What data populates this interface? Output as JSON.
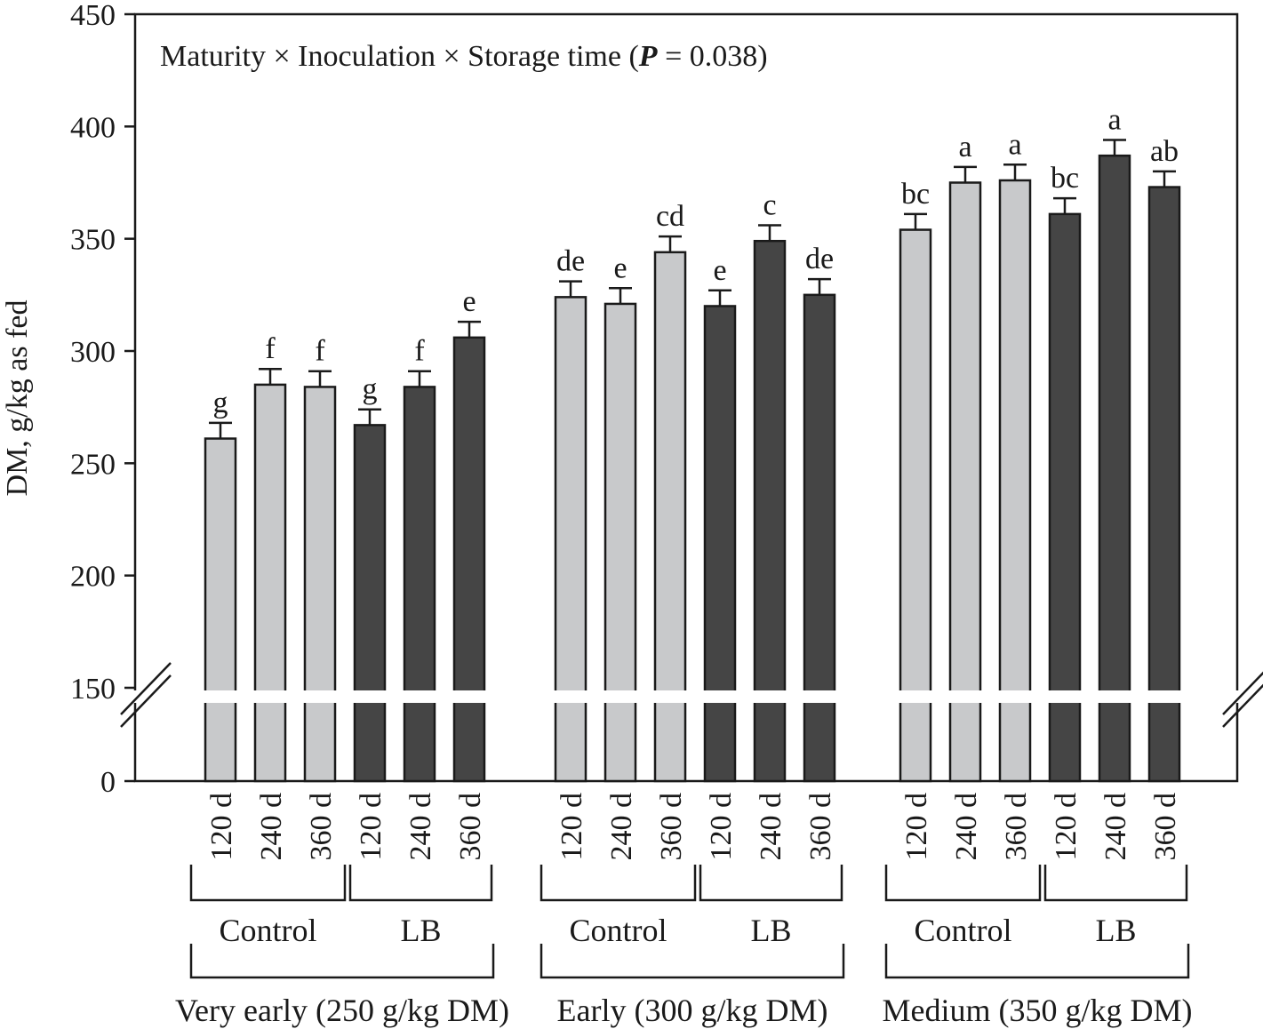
{
  "chart_data": {
    "type": "bar",
    "title": "Maturity × Inoculation × Storage time (P = 0.038)",
    "title_parts": {
      "prefix": "Maturity × Inoculation × Storage time (",
      "p_symbol": "P",
      "suffix": " = 0.038)"
    },
    "ylabel": "DM, g/kg as fed",
    "ylim": [
      0,
      450
    ],
    "axis_break": [
      0,
      150
    ],
    "yticks": [
      0,
      150,
      200,
      250,
      300,
      350,
      400,
      450
    ],
    "legend": [
      {
        "name": "Control",
        "color": "#c8c9cb"
      },
      {
        "name": "LB",
        "color": "#454545"
      }
    ],
    "groups": [
      {
        "maturity": "Very early (250 g/kg DM)",
        "inoculations": [
          {
            "name": "Control",
            "bars": [
              {
                "time": "120 d",
                "value": 261,
                "error": 7,
                "letter": "g"
              },
              {
                "time": "240 d",
                "value": 285,
                "error": 7,
                "letter": "f"
              },
              {
                "time": "360 d",
                "value": 284,
                "error": 7,
                "letter": "f"
              }
            ]
          },
          {
            "name": "LB",
            "bars": [
              {
                "time": "120 d",
                "value": 267,
                "error": 7,
                "letter": "g"
              },
              {
                "time": "240 d",
                "value": 284,
                "error": 7,
                "letter": "f"
              },
              {
                "time": "360 d",
                "value": 306,
                "error": 7,
                "letter": "e"
              }
            ]
          }
        ]
      },
      {
        "maturity": "Early (300 g/kg DM)",
        "inoculations": [
          {
            "name": "Control",
            "bars": [
              {
                "time": "120 d",
                "value": 324,
                "error": 7,
                "letter": "de"
              },
              {
                "time": "240 d",
                "value": 321,
                "error": 7,
                "letter": "e"
              },
              {
                "time": "360 d",
                "value": 344,
                "error": 7,
                "letter": "cd"
              }
            ]
          },
          {
            "name": "LB",
            "bars": [
              {
                "time": "120 d",
                "value": 320,
                "error": 7,
                "letter": "e"
              },
              {
                "time": "240 d",
                "value": 349,
                "error": 7,
                "letter": "c"
              },
              {
                "time": "360 d",
                "value": 325,
                "error": 7,
                "letter": "de"
              }
            ]
          }
        ]
      },
      {
        "maturity": "Medium (350 g/kg DM)",
        "inoculations": [
          {
            "name": "Control",
            "bars": [
              {
                "time": "120 d",
                "value": 354,
                "error": 7,
                "letter": "bc"
              },
              {
                "time": "240 d",
                "value": 375,
                "error": 7,
                "letter": "a"
              },
              {
                "time": "360 d",
                "value": 376,
                "error": 7,
                "letter": "a"
              }
            ]
          },
          {
            "name": "LB",
            "bars": [
              {
                "time": "120 d",
                "value": 361,
                "error": 7,
                "letter": "bc"
              },
              {
                "time": "240 d",
                "value": 387,
                "error": 7,
                "letter": "a"
              },
              {
                "time": "360 d",
                "value": 373,
                "error": 7,
                "letter": "ab"
              }
            ]
          }
        ]
      }
    ]
  }
}
